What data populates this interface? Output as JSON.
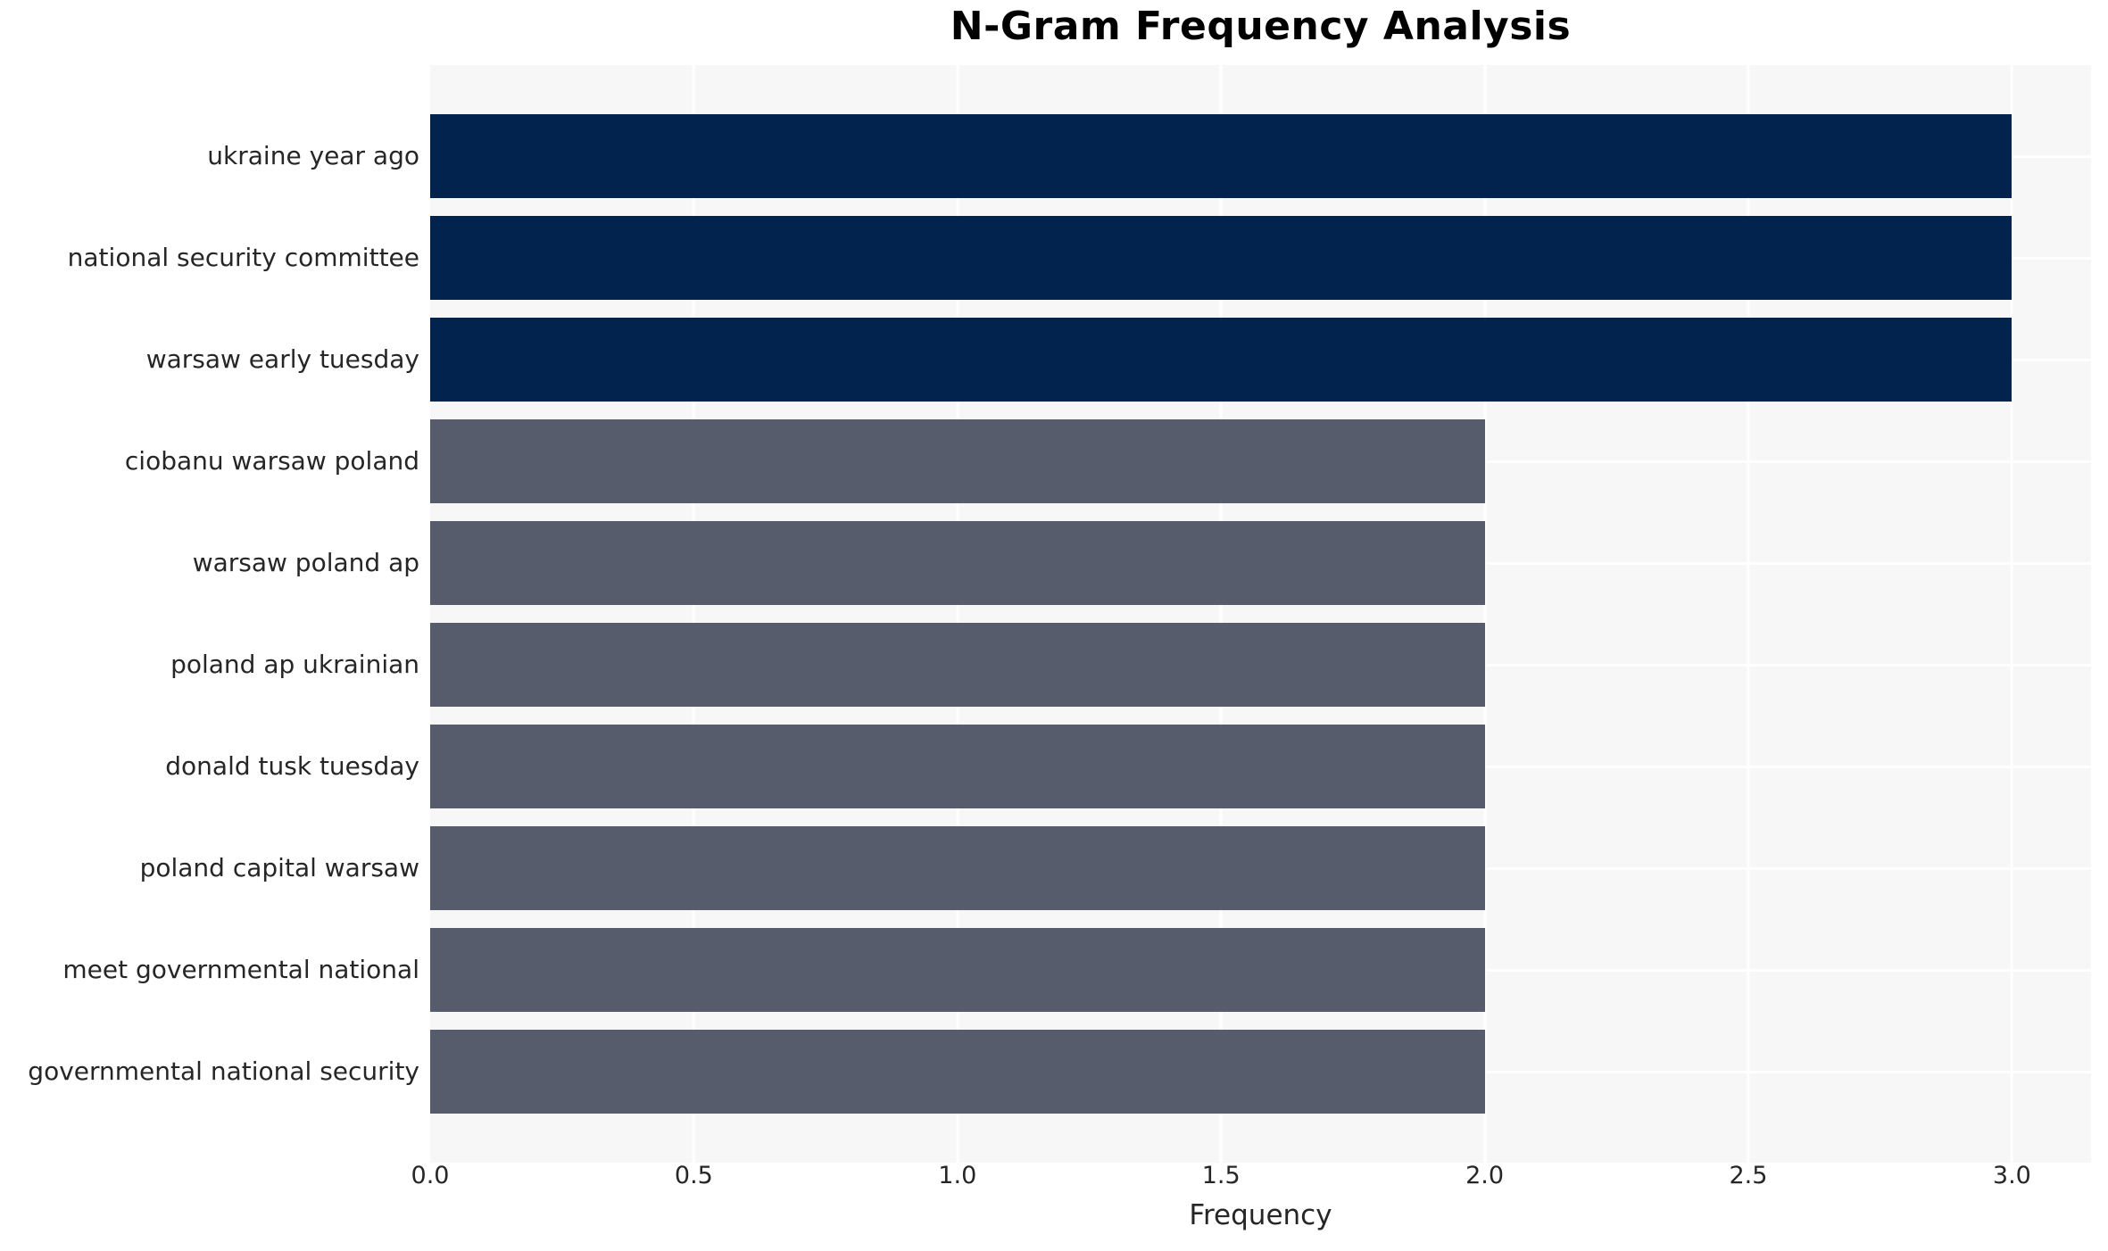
{
  "header": {
    "title": "N-Gram Frequency Analysis"
  },
  "chart_data": {
    "type": "bar",
    "orientation": "horizontal",
    "title": "N-Gram Frequency Analysis",
    "xlabel": "Frequency",
    "ylabel": "",
    "categories": [
      "ukraine year ago",
      "national security committee",
      "warsaw early tuesday",
      "ciobanu warsaw poland",
      "warsaw poland ap",
      "poland ap ukrainian",
      "donald tusk tuesday",
      "poland capital warsaw",
      "meet governmental national",
      "governmental national security"
    ],
    "values": [
      3,
      3,
      3,
      2,
      2,
      2,
      2,
      2,
      2,
      2
    ],
    "bar_colors": [
      "#02234D",
      "#02234D",
      "#02234D",
      "#565C6B",
      "#565C6B",
      "#565C6B",
      "#565C6B",
      "#565C6B",
      "#565C6B",
      "#565C6B"
    ],
    "x_ticks": [
      0.0,
      0.5,
      1.0,
      1.5,
      2.0,
      2.5,
      3.0
    ],
    "x_tick_labels": [
      "0.0",
      "0.5",
      "1.0",
      "1.5",
      "2.0",
      "2.5",
      "3.0"
    ],
    "xlim": [
      0,
      3.15
    ],
    "grid": true,
    "legend_position": "none",
    "colors": {
      "plot_background": "#F7F7F8",
      "grid_color": "#FFFFFF",
      "high_value_bar": "#02234D",
      "low_value_bar": "#565C6B",
      "tick_text": "#262626",
      "title_text": "#000000"
    }
  }
}
